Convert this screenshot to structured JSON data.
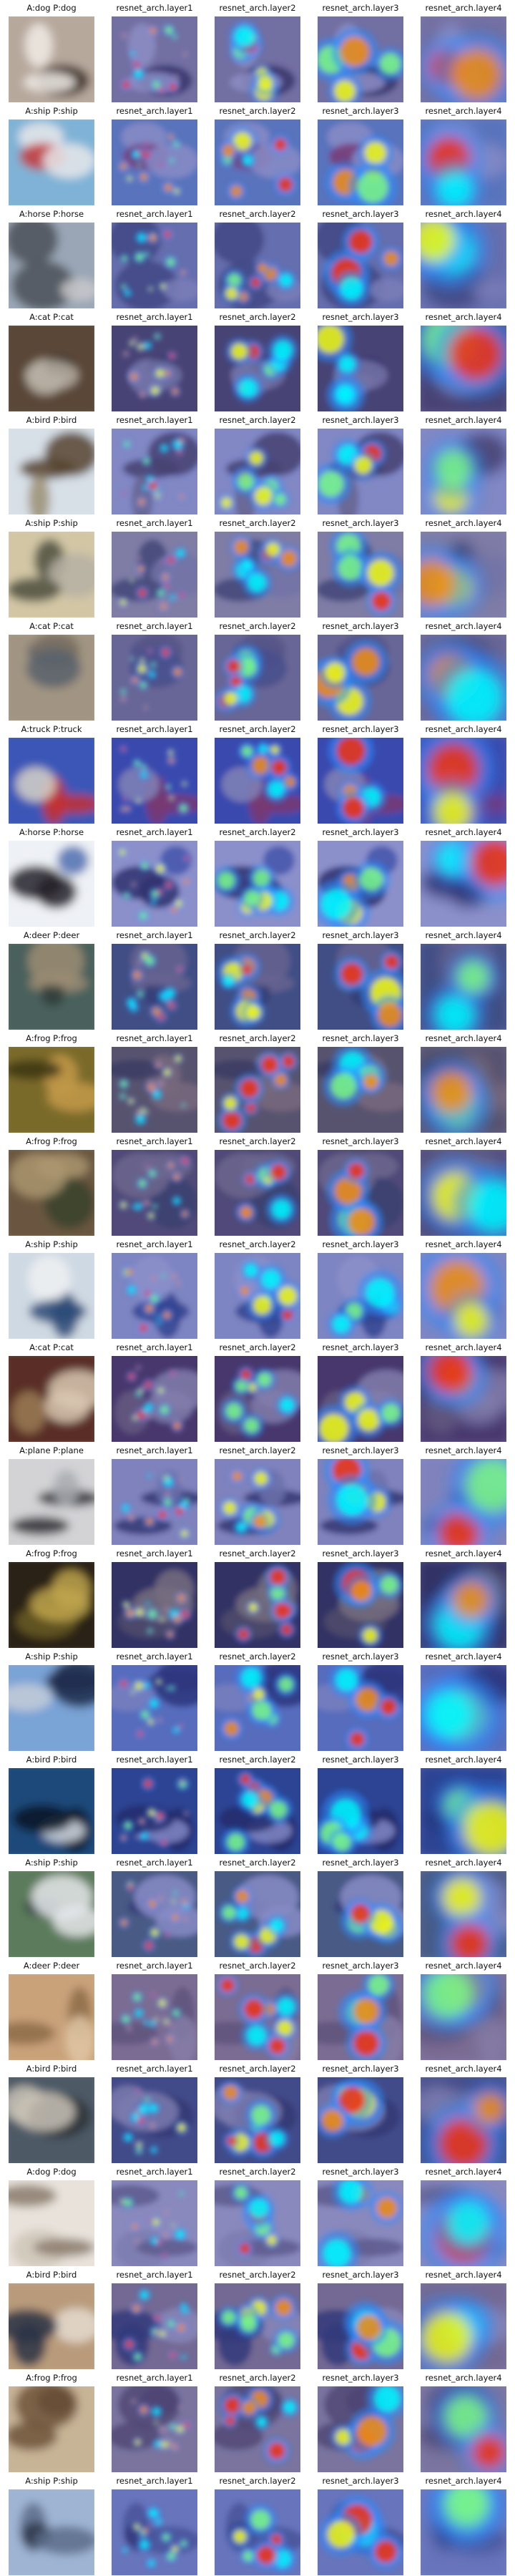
{
  "columns": [
    "resnet_arch.layer1",
    "resnet_arch.layer2",
    "resnet_arch.layer3",
    "resnet_arch.layer4"
  ],
  "colors": {
    "overlay_base": "#3a3fa8",
    "background": "#ffffff"
  },
  "rows": [
    {
      "label": "A:dog P:dog",
      "actual": "dog",
      "predicted": "dog",
      "image_colors": [
        "#b7a89c",
        "#f1ece6",
        "#3a2a25"
      ]
    },
    {
      "label": "A:ship P:ship",
      "actual": "ship",
      "predicted": "ship",
      "image_colors": [
        "#7fb2d6",
        "#e7e7ea",
        "#c53a3a"
      ]
    },
    {
      "label": "A:horse P:horse",
      "actual": "horse",
      "predicted": "horse",
      "image_colors": [
        "#9aa6b5",
        "#4a5058",
        "#c8c8cb"
      ]
    },
    {
      "label": "A:cat P:cat",
      "actual": "cat",
      "predicted": "cat",
      "image_colors": [
        "#5a4638",
        "#b9b0a5",
        "#2b2420"
      ]
    },
    {
      "label": "A:bird P:bird",
      "actual": "bird",
      "predicted": "bird",
      "image_colors": [
        "#d7dfe7",
        "#56432f",
        "#9b8f72"
      ]
    },
    {
      "label": "A:ship P:ship",
      "actual": "ship",
      "predicted": "ship",
      "image_colors": [
        "#d2c6a5",
        "#4d4d3e",
        "#b6b0a3"
      ]
    },
    {
      "label": "A:cat P:cat",
      "actual": "cat",
      "predicted": "cat",
      "image_colors": [
        "#a19482",
        "#58616b",
        "#7c7263"
      ]
    },
    {
      "label": "A:truck P:truck",
      "actual": "truck",
      "predicted": "truck",
      "image_colors": [
        "#3b57b6",
        "#c63030",
        "#d7d2c8"
      ]
    },
    {
      "label": "A:horse P:horse",
      "actual": "horse",
      "predicted": "horse",
      "image_colors": [
        "#eef1f5",
        "#24222a",
        "#4d6fb0"
      ]
    },
    {
      "label": "A:deer P:deer",
      "actual": "deer",
      "predicted": "deer",
      "image_colors": [
        "#48605b",
        "#9e8d74",
        "#2e3b38"
      ]
    },
    {
      "label": "A:frog P:frog",
      "actual": "frog",
      "predicted": "frog",
      "image_colors": [
        "#7a6b2c",
        "#c49a4a",
        "#3b3515"
      ]
    },
    {
      "label": "A:frog P:frog",
      "actual": "frog",
      "predicted": "frog",
      "image_colors": [
        "#6b5740",
        "#aa9570",
        "#39422a"
      ]
    },
    {
      "label": "A:ship P:ship",
      "actual": "ship",
      "predicted": "ship",
      "image_colors": [
        "#cfd9e3",
        "#2c4a77",
        "#eef0f2"
      ]
    },
    {
      "label": "A:cat P:cat",
      "actual": "cat",
      "predicted": "cat",
      "image_colors": [
        "#5a2f25",
        "#d9c8b2",
        "#9a7a55"
      ]
    },
    {
      "label": "A:plane P:plane",
      "actual": "plane",
      "predicted": "plane",
      "image_colors": [
        "#d3d3d6",
        "#2d2d33",
        "#a8aab0"
      ]
    },
    {
      "label": "A:frog P:frog",
      "actual": "frog",
      "predicted": "frog",
      "image_colors": [
        "#2a2414",
        "#c0a44c",
        "#6b5a22"
      ]
    },
    {
      "label": "A:ship P:ship",
      "actual": "ship",
      "predicted": "ship",
      "image_colors": [
        "#7aa3d6",
        "#1e2a4c",
        "#c4cdd8"
      ]
    },
    {
      "label": "A:bird P:bird",
      "actual": "bird",
      "predicted": "bird",
      "image_colors": [
        "#1e4a7a",
        "#0c1624",
        "#d7dde5"
      ]
    },
    {
      "label": "A:ship P:ship",
      "actual": "ship",
      "predicted": "ship",
      "image_colors": [
        "#5c7a5b",
        "#e5e8eb",
        "#2c3b3f"
      ]
    },
    {
      "label": "A:deer P:deer",
      "actual": "deer",
      "predicted": "deer",
      "image_colors": [
        "#c9a27a",
        "#8d6b49",
        "#e0c7a4"
      ]
    },
    {
      "label": "A:bird P:bird",
      "actual": "bird",
      "predicted": "bird",
      "image_colors": [
        "#4d5a66",
        "#c9c2b6",
        "#2e3336"
      ]
    },
    {
      "label": "A:dog P:dog",
      "actual": "dog",
      "predicted": "dog",
      "image_colors": [
        "#e8e2da",
        "#8a7a6c",
        "#cfc5b9"
      ]
    },
    {
      "label": "A:bird P:bird",
      "actual": "bird",
      "predicted": "bird",
      "image_colors": [
        "#b99b7b",
        "#2b3345",
        "#e5dcd0"
      ]
    },
    {
      "label": "A:frog P:frog",
      "actual": "frog",
      "predicted": "frog",
      "image_colors": [
        "#c7b396",
        "#6d533a",
        "#3a2c1e"
      ]
    },
    {
      "label": "A:ship P:ship",
      "actual": "ship",
      "predicted": "ship",
      "image_colors": [
        "#9fb4d3",
        "#5a6c88",
        "#2c3248"
      ]
    }
  ]
}
